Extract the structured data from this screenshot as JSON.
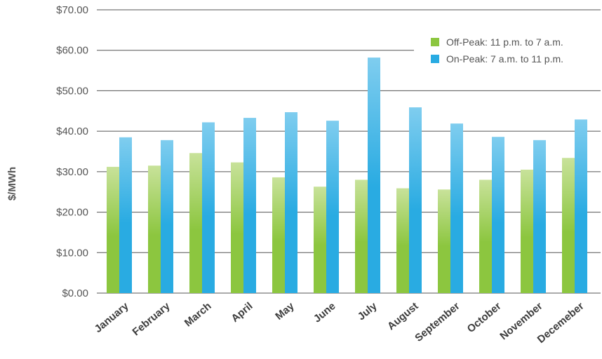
{
  "chart_data": {
    "type": "bar",
    "title": "",
    "xlabel": "",
    "ylabel": "$/MWh",
    "ylim": [
      0,
      70
    ],
    "yticks": [
      0,
      10,
      20,
      30,
      40,
      50,
      60,
      70
    ],
    "ytick_labels": [
      "$0.00",
      "$10.00",
      "$20.00",
      "$30.00",
      "$40.00",
      "$50.00",
      "$60.00",
      "$70.00"
    ],
    "grid": true,
    "legend_position": "top-right",
    "categories": [
      "January",
      "February",
      "March",
      "April",
      "May",
      "June",
      "July",
      "August",
      "September",
      "October",
      "November",
      "Decemeber"
    ],
    "series": [
      {
        "name": "Off-Peak: 11 p.m. to 7 a.m.",
        "color": "#8cc63f",
        "color_light": "#c8e29a",
        "values": [
          31.2,
          31.5,
          34.6,
          32.3,
          28.6,
          26.3,
          28.0,
          25.9,
          25.6,
          28.0,
          30.5,
          33.4
        ]
      },
      {
        "name": "On-Peak: 7 a.m. to 11 p.m.",
        "color": "#29abe2",
        "color_light": "#7fcdef",
        "values": [
          38.5,
          37.8,
          42.2,
          43.3,
          44.7,
          42.6,
          58.2,
          45.9,
          41.9,
          38.6,
          37.8,
          42.9
        ]
      }
    ]
  }
}
